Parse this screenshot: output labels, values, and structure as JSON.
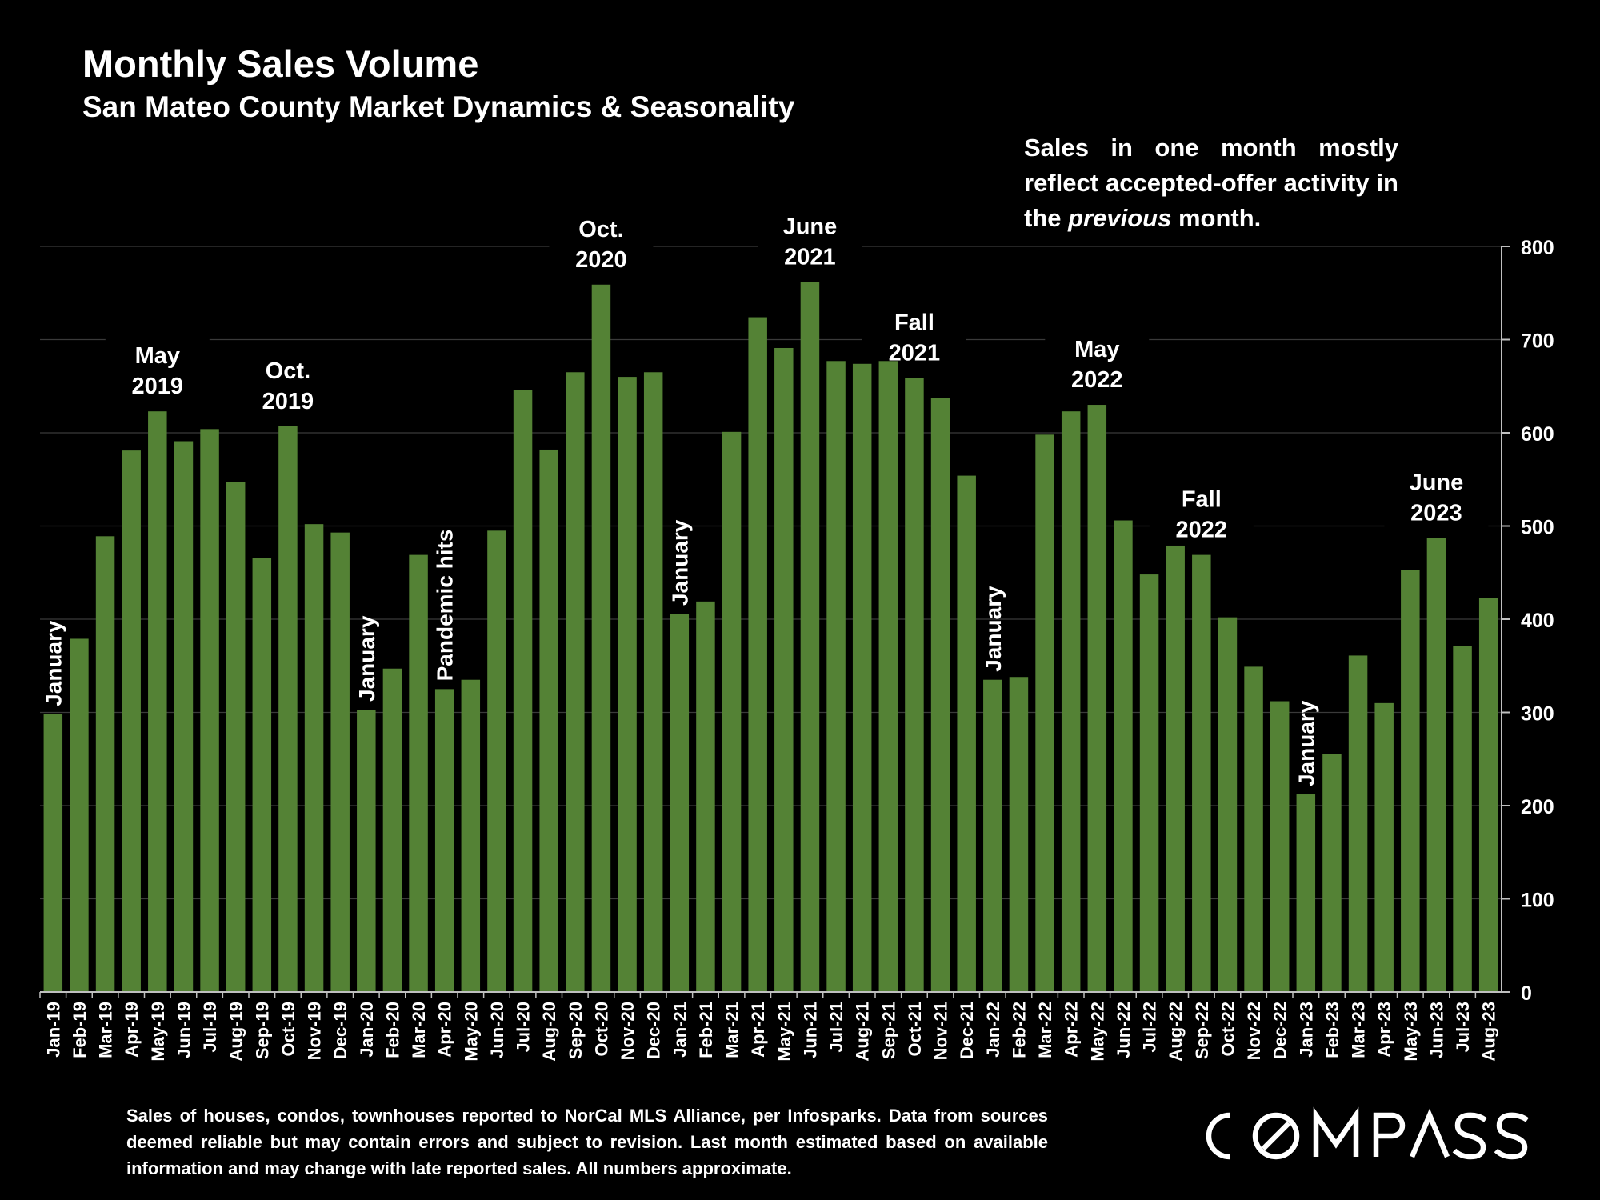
{
  "header": {
    "title": "Monthly Sales Volume",
    "subtitle": "San Mateo County Market Dynamics & Seasonality"
  },
  "note": {
    "line_prefix": "Sales in one month mostly reflect accepted-offer activity in the",
    "emphasis": "previous",
    "line_suffix": "month."
  },
  "footnote": "Sales of houses, condos, townhouses reported to NorCal MLS Alliance, per Infosparks. Data from sources deemed reliable but may contain errors and subject to revision. Last month estimated based on available information and may change with late reported sales. All numbers approximate.",
  "brand": {
    "name": "COMPASS"
  },
  "colors": {
    "background": "#000000",
    "bar": "#548235",
    "text": "#ffffff",
    "grid": "#3a3a3a"
  },
  "chart_data": {
    "type": "bar",
    "categories": [
      "Jan-19",
      "Feb-19",
      "Mar-19",
      "Apr-19",
      "May-19",
      "Jun-19",
      "Jul-19",
      "Aug-19",
      "Sep-19",
      "Oct-19",
      "Nov-19",
      "Dec-19",
      "Jan-20",
      "Feb-20",
      "Mar-20",
      "Apr-20",
      "May-20",
      "Jun-20",
      "Jul-20",
      "Aug-20",
      "Sep-20",
      "Oct-20",
      "Nov-20",
      "Dec-20",
      "Jan-21",
      "Feb-21",
      "Mar-21",
      "Apr-21",
      "May-21",
      "Jun-21",
      "Jul-21",
      "Aug-21",
      "Sep-21",
      "Oct-21",
      "Nov-21",
      "Dec-21",
      "Jan-22",
      "Feb-22",
      "Mar-22",
      "Apr-22",
      "May-22",
      "Jun-22",
      "Jul-22",
      "Aug-22",
      "Sep-22",
      "Oct-22",
      "Nov-22",
      "Dec-22",
      "Jan-23",
      "Feb-23",
      "Mar-23",
      "Apr-23",
      "May-23",
      "Jun-23",
      "Jul-23",
      "Aug-23"
    ],
    "values": [
      298,
      379,
      489,
      581,
      623,
      591,
      604,
      547,
      466,
      607,
      502,
      493,
      303,
      347,
      469,
      325,
      335,
      495,
      646,
      582,
      665,
      759,
      660,
      665,
      406,
      419,
      601,
      724,
      691,
      762,
      677,
      674,
      677,
      659,
      637,
      554,
      335,
      338,
      598,
      623,
      630,
      506,
      448,
      479,
      469,
      402,
      349,
      312,
      212,
      255,
      361,
      310,
      453,
      487,
      371,
      423
    ],
    "ylim": [
      0,
      800
    ],
    "yticks": [
      0,
      100,
      200,
      300,
      400,
      500,
      600,
      700,
      800
    ],
    "y_axis_side": "right",
    "grid": true,
    "annotations": [
      {
        "index": 0,
        "lines": [
          "January"
        ],
        "rotated": true
      },
      {
        "index": 4,
        "lines": [
          "May",
          "2019"
        ],
        "rotated": false
      },
      {
        "index": 9,
        "lines": [
          "Oct.",
          "2019"
        ],
        "rotated": false
      },
      {
        "index": 12,
        "lines": [
          "January"
        ],
        "rotated": true
      },
      {
        "index": 15,
        "lines": [
          "Pandemic hits"
        ],
        "rotated": true
      },
      {
        "index": 21,
        "lines": [
          "Oct.",
          "2020"
        ],
        "rotated": false
      },
      {
        "index": 24,
        "lines": [
          "January"
        ],
        "rotated": true
      },
      {
        "index": 29,
        "lines": [
          "June",
          "2021"
        ],
        "rotated": false
      },
      {
        "index": 33,
        "lines": [
          "Fall",
          "2021"
        ],
        "rotated": false
      },
      {
        "index": 36,
        "lines": [
          "January"
        ],
        "rotated": true
      },
      {
        "index": 40,
        "lines": [
          "May",
          "2022"
        ],
        "rotated": false
      },
      {
        "index": 44,
        "lines": [
          "Fall",
          "2022"
        ],
        "rotated": false
      },
      {
        "index": 48,
        "lines": [
          "January"
        ],
        "rotated": true
      },
      {
        "index": 53,
        "lines": [
          "June",
          "2023"
        ],
        "rotated": false
      }
    ]
  }
}
